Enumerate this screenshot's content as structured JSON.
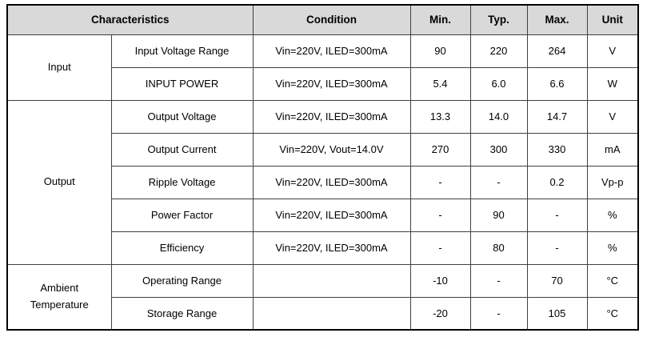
{
  "colors": {
    "header_bg": "#d9d9d9",
    "inner_border": "#404040",
    "outer_border": "#000000",
    "text": "#000000"
  },
  "headers": {
    "characteristics": "Characteristics",
    "condition": "Condition",
    "min": "Min.",
    "typ": "Typ.",
    "max": "Max.",
    "unit": "Unit"
  },
  "rows": [
    {
      "group": "Input",
      "group_rowspan": 2,
      "characteristic": "Input Voltage Range",
      "condition": "Vin=220V, ILED=300mA",
      "min": "90",
      "typ": "220",
      "max": "264",
      "unit": "V"
    },
    {
      "characteristic": "INPUT POWER",
      "condition": "Vin=220V, ILED=300mA",
      "min": "5.4",
      "typ": "6.0",
      "max": "6.6",
      "unit": "W"
    },
    {
      "group": "Output",
      "group_rowspan": 5,
      "characteristic": "Output Voltage",
      "condition": "Vin=220V, ILED=300mA",
      "min": "13.3",
      "typ": "14.0",
      "max": "14.7",
      "unit": "V"
    },
    {
      "characteristic": "Output Current",
      "condition": "Vin=220V, Vout=14.0V",
      "min": "270",
      "typ": "300",
      "max": "330",
      "unit": "mA"
    },
    {
      "characteristic": "Ripple Voltage",
      "condition": "Vin=220V, ILED=300mA",
      "min": "-",
      "typ": "-",
      "max": "0.2",
      "unit": "Vp-p"
    },
    {
      "characteristic": "Power Factor",
      "condition": "Vin=220V, ILED=300mA",
      "min": "-",
      "typ": "90",
      "max": "-",
      "unit": "%"
    },
    {
      "characteristic": "Efficiency",
      "condition": "Vin=220V, ILED=300mA",
      "min": "-",
      "typ": "80",
      "max": "-",
      "unit": "%"
    },
    {
      "group": "Ambient Temperature",
      "group_rowspan": 2,
      "characteristic": "Operating Range",
      "condition": "",
      "min": "-10",
      "typ": "-",
      "max": "70",
      "unit": "°C"
    },
    {
      "characteristic": "Storage Range",
      "condition": "",
      "min": "-20",
      "typ": "-",
      "max": "105",
      "unit": "°C"
    }
  ]
}
